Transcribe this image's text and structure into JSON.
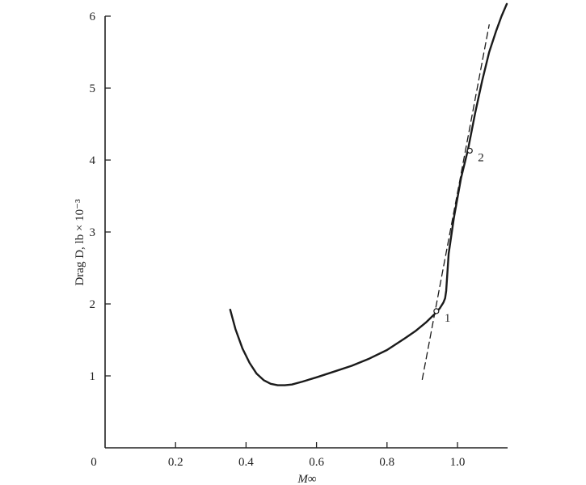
{
  "chart_data": {
    "type": "line",
    "title": "",
    "xlabel": "M∞",
    "ylabel": "Drag D, lb × 10⁻³",
    "xlim": [
      0,
      1.15
    ],
    "ylim": [
      0,
      6
    ],
    "origin_label": "0",
    "x_ticks": [
      {
        "value": 0.2,
        "label": "0.2"
      },
      {
        "value": 0.4,
        "label": "0.4"
      },
      {
        "value": 0.6,
        "label": "0.6"
      },
      {
        "value": 0.8,
        "label": "0.8"
      },
      {
        "value": 1.0,
        "label": "1.0"
      }
    ],
    "y_ticks": [
      {
        "value": 1,
        "label": "1"
      },
      {
        "value": 2,
        "label": "2"
      },
      {
        "value": 3,
        "label": "3"
      },
      {
        "value": 4,
        "label": "4"
      },
      {
        "value": 5,
        "label": "5"
      },
      {
        "value": 6,
        "label": "6"
      }
    ],
    "grid": false,
    "legend": "none",
    "series": [
      {
        "style": "solid",
        "x": [
          0.355,
          0.37,
          0.39,
          0.41,
          0.43,
          0.45,
          0.47,
          0.49,
          0.51,
          0.53,
          0.56,
          0.6,
          0.65,
          0.7,
          0.75,
          0.8,
          0.85,
          0.88,
          0.91,
          0.935,
          0.95,
          0.96,
          0.965,
          0.968,
          0.975,
          0.99,
          1.01,
          1.03,
          1.05,
          1.07,
          1.09,
          1.11,
          1.125,
          1.14
        ],
        "y": [
          1.92,
          1.65,
          1.38,
          1.18,
          1.03,
          0.94,
          0.89,
          0.87,
          0.87,
          0.88,
          0.92,
          0.98,
          1.06,
          1.14,
          1.24,
          1.36,
          1.52,
          1.62,
          1.74,
          1.86,
          1.94,
          2.02,
          2.08,
          2.18,
          2.7,
          3.2,
          3.75,
          4.15,
          4.65,
          5.1,
          5.5,
          5.8,
          6.0,
          6.17
        ]
      },
      {
        "style": "dashed",
        "x": [
          0.9,
          1.09
        ],
        "y": [
          0.95,
          5.88
        ]
      }
    ],
    "points": [
      {
        "label": "1",
        "x": 0.94,
        "y": 1.9
      },
      {
        "label": "2",
        "x": 1.035,
        "y": 4.13
      }
    ]
  }
}
